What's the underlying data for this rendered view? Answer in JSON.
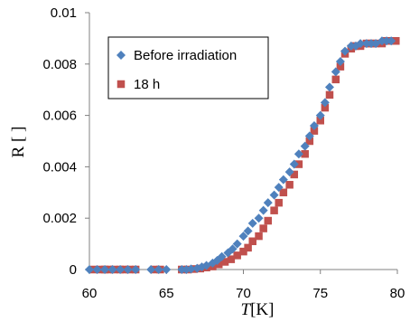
{
  "chart_data": {
    "type": "scatter",
    "xlabel_italic": "T",
    "xlabel_unit": "[K]",
    "ylabel": "R [ ]",
    "xlim": [
      60,
      80
    ],
    "ylim": [
      0,
      0.01
    ],
    "x_ticks": [
      "60",
      "65",
      "70",
      "75",
      "80"
    ],
    "y_ticks": [
      "0",
      "0.002",
      "0.004",
      "0.006",
      "0.008",
      "0.01"
    ],
    "legend_position": "top-left",
    "grid": false,
    "series": [
      {
        "name": "Before irradiation",
        "marker": "diamond",
        "color": "#4f81bd",
        "points": [
          [
            60.0,
            0.0
          ],
          [
            60.5,
            0.0
          ],
          [
            61.0,
            0.0
          ],
          [
            61.5,
            0.0
          ],
          [
            62.0,
            0.0
          ],
          [
            62.5,
            0.0
          ],
          [
            63.0,
            0.0
          ],
          [
            64.0,
            0.0
          ],
          [
            64.5,
            0.0
          ],
          [
            65.0,
            0.0
          ],
          [
            66.0,
            0.0
          ],
          [
            66.3,
            0.0
          ],
          [
            66.6,
            2e-05
          ],
          [
            67.0,
            5e-05
          ],
          [
            67.3,
            0.0001
          ],
          [
            67.6,
            0.00016
          ],
          [
            68.0,
            0.00025
          ],
          [
            68.3,
            0.00035
          ],
          [
            68.6,
            0.0005
          ],
          [
            69.0,
            0.00065
          ],
          [
            69.3,
            0.0008
          ],
          [
            69.6,
            0.001
          ],
          [
            70.0,
            0.0013
          ],
          [
            70.3,
            0.0015
          ],
          [
            70.6,
            0.0018
          ],
          [
            71.0,
            0.002
          ],
          [
            71.3,
            0.0023
          ],
          [
            71.6,
            0.0026
          ],
          [
            72.0,
            0.0029
          ],
          [
            72.3,
            0.0032
          ],
          [
            72.6,
            0.0035
          ],
          [
            73.0,
            0.0038
          ],
          [
            73.3,
            0.0041
          ],
          [
            73.6,
            0.0045
          ],
          [
            74.0,
            0.0048
          ],
          [
            74.3,
            0.0052
          ],
          [
            74.6,
            0.0056
          ],
          [
            75.0,
            0.006
          ],
          [
            75.3,
            0.0065
          ],
          [
            75.6,
            0.0071
          ],
          [
            76.0,
            0.0077
          ],
          [
            76.3,
            0.0081
          ],
          [
            76.6,
            0.0085
          ],
          [
            77.0,
            0.0087
          ],
          [
            77.3,
            0.0087
          ],
          [
            77.6,
            0.0088
          ],
          [
            78.0,
            0.0088
          ],
          [
            78.3,
            0.0088
          ],
          [
            78.6,
            0.0088
          ],
          [
            79.0,
            0.0089
          ],
          [
            79.3,
            0.0089
          ],
          [
            79.6,
            0.0089
          ]
        ]
      },
      {
        "name": "18 h",
        "marker": "square",
        "color": "#c0504d",
        "points": [
          [
            60.3,
            0.0
          ],
          [
            60.7,
            0.0
          ],
          [
            61.0,
            0.0
          ],
          [
            61.3,
            0.0
          ],
          [
            61.6,
            0.0
          ],
          [
            62.0,
            0.0
          ],
          [
            62.3,
            0.0
          ],
          [
            62.6,
            0.0
          ],
          [
            63.0,
            0.0
          ],
          [
            64.2,
            0.0
          ],
          [
            64.6,
            0.0
          ],
          [
            66.0,
            0.0
          ],
          [
            66.4,
            0.0
          ],
          [
            66.8,
            2e-05
          ],
          [
            67.2,
            4e-05
          ],
          [
            67.6,
            8e-05
          ],
          [
            68.0,
            0.00012
          ],
          [
            68.4,
            0.0002
          ],
          [
            68.8,
            0.0003
          ],
          [
            69.2,
            0.0004
          ],
          [
            69.6,
            0.00055
          ],
          [
            70.0,
            0.0007
          ],
          [
            70.3,
            0.00085
          ],
          [
            70.6,
            0.0011
          ],
          [
            71.0,
            0.0013
          ],
          [
            71.3,
            0.0016
          ],
          [
            71.6,
            0.0019
          ],
          [
            72.0,
            0.0023
          ],
          [
            72.3,
            0.0026
          ],
          [
            72.6,
            0.003
          ],
          [
            73.0,
            0.0033
          ],
          [
            73.3,
            0.0037
          ],
          [
            73.6,
            0.0041
          ],
          [
            74.0,
            0.0045
          ],
          [
            74.3,
            0.005
          ],
          [
            74.6,
            0.0054
          ],
          [
            75.0,
            0.0058
          ],
          [
            75.3,
            0.0063
          ],
          [
            75.6,
            0.0068
          ],
          [
            76.0,
            0.0074
          ],
          [
            76.3,
            0.0079
          ],
          [
            76.6,
            0.0084
          ],
          [
            77.0,
            0.0086
          ],
          [
            77.3,
            0.0087
          ],
          [
            77.6,
            0.0087
          ],
          [
            78.0,
            0.0088
          ],
          [
            78.3,
            0.0088
          ],
          [
            78.6,
            0.0088
          ],
          [
            79.0,
            0.0088
          ],
          [
            79.3,
            0.0089
          ],
          [
            79.6,
            0.0089
          ],
          [
            79.9,
            0.0089
          ]
        ]
      }
    ]
  }
}
